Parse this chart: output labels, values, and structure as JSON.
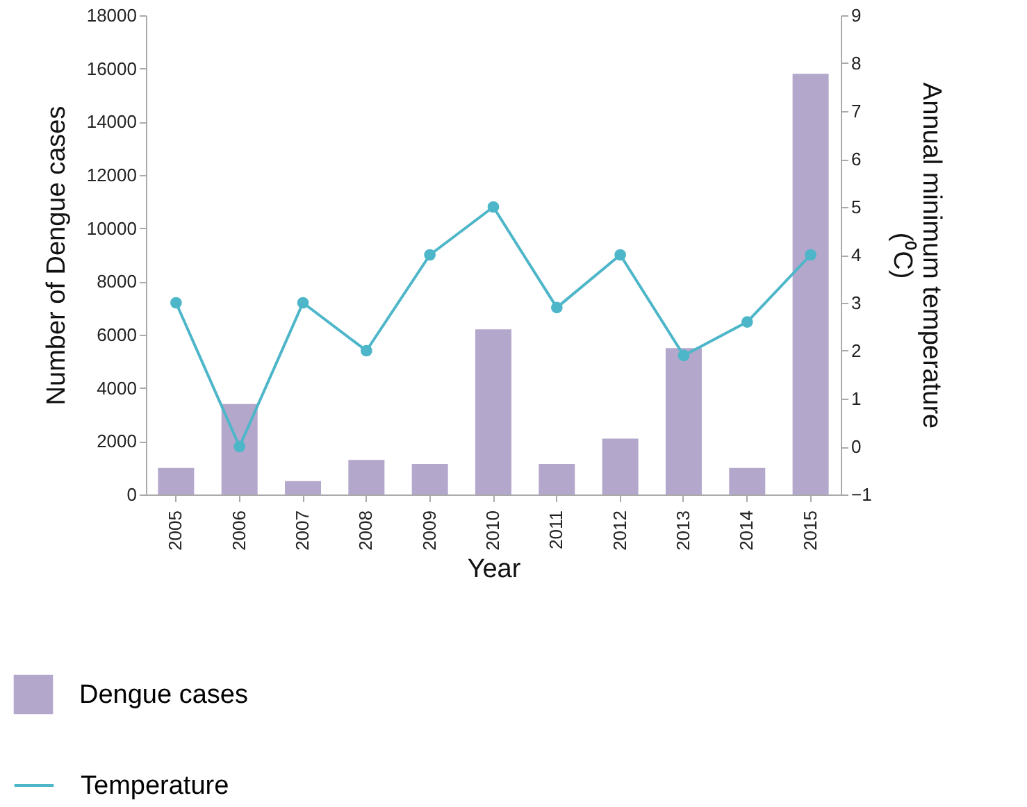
{
  "chart_data": {
    "type": "bar",
    "xlabel": "Year",
    "ylabel": "Number of Dengue cases",
    "y2label": "Annual minimum temperature (⁰C)",
    "categories": [
      "2005",
      "2006",
      "2007",
      "2008",
      "2009",
      "2010",
      "2011",
      "2012",
      "2013",
      "2014",
      "2015"
    ],
    "series": [
      {
        "name": "Dengue cases",
        "color": "#b4a7cc",
        "values": [
          1000,
          3400,
          500,
          1300,
          1150,
          6200,
          1150,
          2100,
          5500,
          1000,
          15800
        ]
      },
      {
        "name": "Temperature",
        "type": "line",
        "axis": "y2",
        "color": "#4db6c9",
        "marker": "circle",
        "values": [
          3,
          0,
          3,
          2,
          4,
          5,
          2.9,
          4,
          1.9,
          2.6,
          4
        ]
      }
    ],
    "ylim": [
      0,
      18000
    ],
    "yticks": [
      0,
      2000,
      4000,
      6000,
      8000,
      10000,
      12000,
      14000,
      16000,
      18000
    ],
    "y2lim": [
      -1,
      9
    ],
    "y2ticks": [
      -1,
      0,
      1,
      2,
      3,
      4,
      5,
      6,
      7,
      8,
      9
    ],
    "grid": false,
    "legend": "bottom left"
  }
}
